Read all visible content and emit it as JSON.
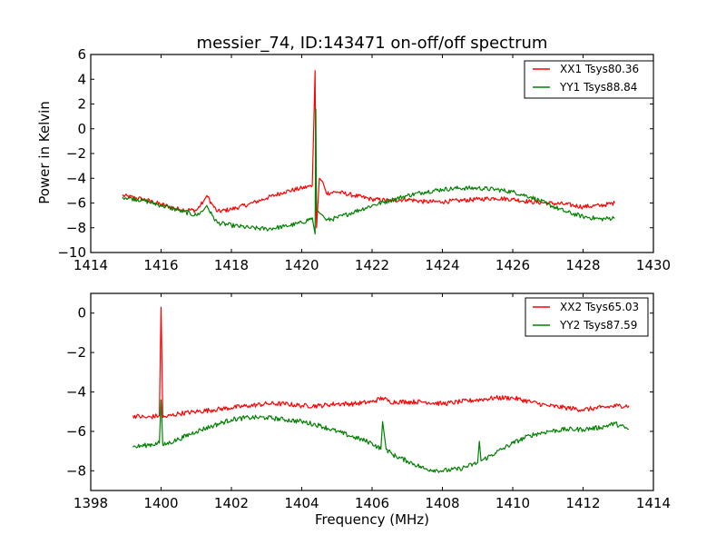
{
  "chart_data": [
    {
      "type": "line",
      "title": "messier_74, ID:143471 on-off/off spectrum",
      "xlabel": "",
      "ylabel": "Power in Kelvin",
      "xlim": [
        1414,
        1430
      ],
      "ylim": [
        -10,
        6
      ],
      "xticks": [
        1414,
        1416,
        1418,
        1420,
        1422,
        1424,
        1426,
        1428,
        1430
      ],
      "yticks": [
        -10,
        -8,
        -6,
        -4,
        -2,
        0,
        2,
        4,
        6
      ],
      "grid": false,
      "legend_position": "top-right",
      "noise": 0.18,
      "series": [
        {
          "name": "XX1 Tsys80.36",
          "color": "#ff0000",
          "x": [
            1414.9,
            1415.5,
            1416.0,
            1416.5,
            1417.0,
            1417.2,
            1417.3,
            1417.45,
            1417.6,
            1418.0,
            1418.5,
            1419.0,
            1419.5,
            1420.0,
            1420.3,
            1420.38,
            1420.4,
            1420.42,
            1420.5,
            1420.6,
            1420.7,
            1421.0,
            1421.5,
            1422.0,
            1422.5,
            1423.0,
            1423.5,
            1424.0,
            1424.5,
            1425.0,
            1425.5,
            1426.0,
            1426.5,
            1427.0,
            1427.5,
            1428.0,
            1428.5,
            1428.9
          ],
          "y": [
            -5.4,
            -5.7,
            -6.1,
            -6.5,
            -6.6,
            -5.9,
            -5.4,
            -6.1,
            -6.7,
            -6.5,
            -6.1,
            -5.6,
            -5.1,
            -4.8,
            -4.6,
            4.7,
            -4.2,
            -8.0,
            -4.0,
            -4.3,
            -5.2,
            -5.1,
            -5.4,
            -5.7,
            -5.8,
            -5.7,
            -5.9,
            -5.9,
            -5.8,
            -5.7,
            -5.6,
            -5.7,
            -5.9,
            -6.0,
            -6.1,
            -6.3,
            -6.2,
            -6.0
          ]
        },
        {
          "name": "YY1 Tsys88.84",
          "color": "#008000",
          "x": [
            1414.9,
            1415.5,
            1416.0,
            1416.5,
            1417.0,
            1417.2,
            1417.3,
            1417.45,
            1417.6,
            1418.0,
            1418.5,
            1419.0,
            1419.5,
            1420.0,
            1420.3,
            1420.38,
            1420.4,
            1420.42,
            1420.5,
            1420.6,
            1420.7,
            1421.0,
            1421.5,
            1422.0,
            1422.5,
            1423.0,
            1423.5,
            1424.0,
            1424.5,
            1425.0,
            1425.5,
            1426.0,
            1426.5,
            1427.0,
            1427.5,
            1428.0,
            1428.5,
            1428.9
          ],
          "y": [
            -5.5,
            -5.8,
            -6.2,
            -6.6,
            -7.0,
            -6.6,
            -6.2,
            -7.0,
            -7.6,
            -7.8,
            -8.0,
            -8.1,
            -7.9,
            -7.6,
            -7.2,
            -8.5,
            1.6,
            -6.5,
            -6.8,
            -7.0,
            -7.4,
            -7.2,
            -6.7,
            -6.2,
            -5.8,
            -5.4,
            -5.1,
            -4.9,
            -4.8,
            -4.8,
            -4.9,
            -5.1,
            -5.5,
            -6.1,
            -6.7,
            -7.1,
            -7.3,
            -7.2
          ]
        }
      ]
    },
    {
      "type": "line",
      "title": "",
      "xlabel": "Frequency (MHz)",
      "ylabel": "",
      "xlim": [
        1398,
        1414
      ],
      "ylim": [
        -9,
        1
      ],
      "xticks": [
        1398,
        1400,
        1402,
        1404,
        1406,
        1408,
        1410,
        1412,
        1414
      ],
      "yticks": [
        -8,
        -6,
        -4,
        -2,
        0
      ],
      "grid": false,
      "legend_position": "top-right",
      "noise": 0.12,
      "series": [
        {
          "name": "XX2 Tsys65.03",
          "color": "#ff0000",
          "x": [
            1399.2,
            1399.6,
            1399.95,
            1400.0,
            1400.05,
            1400.5,
            1401.0,
            1401.5,
            1402.0,
            1402.5,
            1403.0,
            1403.5,
            1404.0,
            1404.5,
            1405.0,
            1405.5,
            1406.0,
            1406.3,
            1406.5,
            1407.0,
            1407.5,
            1408.0,
            1408.5,
            1409.0,
            1409.5,
            1410.0,
            1410.5,
            1411.0,
            1411.5,
            1412.0,
            1412.5,
            1413.0,
            1413.3
          ],
          "y": [
            -5.2,
            -5.3,
            -5.2,
            0.3,
            -5.3,
            -5.1,
            -5.0,
            -4.9,
            -4.8,
            -4.7,
            -4.6,
            -4.6,
            -4.7,
            -4.7,
            -4.6,
            -4.6,
            -4.5,
            -4.3,
            -4.5,
            -4.5,
            -4.5,
            -4.6,
            -4.5,
            -4.4,
            -4.3,
            -4.3,
            -4.5,
            -4.7,
            -4.8,
            -4.9,
            -4.8,
            -4.7,
            -4.7
          ]
        },
        {
          "name": "YY2 Tsys87.59",
          "color": "#008000",
          "x": [
            1399.2,
            1399.6,
            1399.95,
            1400.0,
            1400.05,
            1400.5,
            1401.0,
            1401.5,
            1402.0,
            1402.5,
            1403.0,
            1403.5,
            1404.0,
            1404.5,
            1405.0,
            1405.5,
            1406.0,
            1406.25,
            1406.3,
            1406.4,
            1406.6,
            1407.0,
            1407.5,
            1408.0,
            1408.5,
            1409.0,
            1409.05,
            1409.1,
            1409.5,
            1410.0,
            1410.5,
            1411.0,
            1411.5,
            1412.0,
            1412.5,
            1412.9,
            1413.3
          ],
          "y": [
            -6.8,
            -6.7,
            -6.6,
            -4.4,
            -6.7,
            -6.4,
            -6.0,
            -5.7,
            -5.4,
            -5.3,
            -5.3,
            -5.4,
            -5.5,
            -5.7,
            -6.0,
            -6.3,
            -6.6,
            -6.9,
            -5.5,
            -6.9,
            -7.2,
            -7.5,
            -7.9,
            -8.0,
            -7.9,
            -7.6,
            -6.5,
            -7.5,
            -7.1,
            -6.6,
            -6.2,
            -6.0,
            -5.9,
            -5.9,
            -5.8,
            -5.6,
            -5.9
          ]
        }
      ]
    }
  ]
}
